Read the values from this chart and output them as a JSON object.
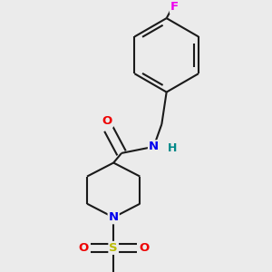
{
  "bg_color": "#ebebeb",
  "atom_colors": {
    "C": "#000000",
    "N": "#0000ee",
    "O": "#ee0000",
    "S": "#bbbb00",
    "F": "#ee00ee",
    "H": "#008888"
  },
  "bond_color": "#1a1a1a",
  "bond_width": 1.5,
  "font_size": 9.5,
  "font_size_small": 9.0
}
